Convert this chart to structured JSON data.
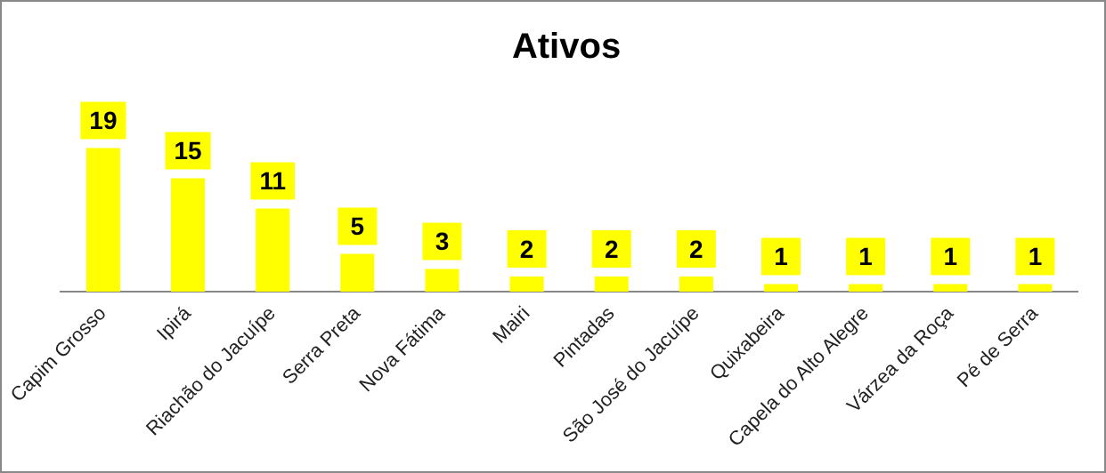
{
  "chart_data": {
    "type": "bar",
    "title": "Ativos",
    "categories": [
      "Capim Grosso",
      "Ipirá",
      "Riachão do Jacuípe",
      "Serra Preta",
      "Nova Fátima",
      "Mairi",
      "Pintadas",
      "São José do Jacuípe",
      "Quixabeira",
      "Capela do Alto Alegre",
      "Várzea da Roça",
      "Pé de Serra"
    ],
    "values": [
      19,
      15,
      11,
      5,
      3,
      2,
      2,
      2,
      1,
      1,
      1,
      1
    ],
    "color": "#ffff00",
    "data_labels": true
  }
}
